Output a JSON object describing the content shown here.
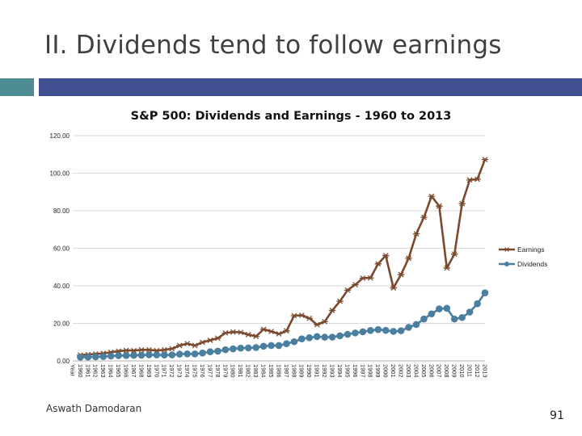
{
  "slide": {
    "title": "II. Dividends tend to follow earnings",
    "author": "Aswath Damodaran",
    "page_number": "91"
  },
  "colors": {
    "accent": "#4e8c93",
    "bar": "#3f4f8f",
    "earnings": "#7b4a2e",
    "dividends": "#4a7fa0",
    "grid": "#d9d9d9"
  },
  "chart_data": {
    "type": "line",
    "title": "S&P 500: Dividends and Earnings - 1960 to 2013",
    "xlabel": "",
    "ylabel": "",
    "ylim": [
      0,
      120
    ],
    "yticks": [
      "0.00",
      "20.00",
      "40.00",
      "60.00",
      "80.00",
      "100.00",
      "120.00"
    ],
    "categories": [
      "Year",
      "1960",
      "1961",
      "1962",
      "1963",
      "1964",
      "1965",
      "1966",
      "1967",
      "1968",
      "1969",
      "1970",
      "1971",
      "1972",
      "1973",
      "1974",
      "1975",
      "1976",
      "1977",
      "1978",
      "1979",
      "1980",
      "1981",
      "1982",
      "1983",
      "1984",
      "1985",
      "1986",
      "1987",
      "1988",
      "1989",
      "1990",
      "1991",
      "1992",
      "1993",
      "1994",
      "1995",
      "1996",
      "1997",
      "1998",
      "1999",
      "2000",
      "2001",
      "2002",
      "2003",
      "2004",
      "2005",
      "2006",
      "2007",
      "2008",
      "2009",
      "2010",
      "2011",
      "2012",
      "2013"
    ],
    "series": [
      {
        "name": "Earnings",
        "marker": "star",
        "values": [
          null,
          3.1,
          3.4,
          3.7,
          4.0,
          4.6,
          5.2,
          5.6,
          5.5,
          5.9,
          5.9,
          5.5,
          5.9,
          6.5,
          8.2,
          9.2,
          8.2,
          9.9,
          11.0,
          12.1,
          14.9,
          15.4,
          15.2,
          14.0,
          13.1,
          16.8,
          15.7,
          14.4,
          16.0,
          24.1,
          24.3,
          22.7,
          19.3,
          20.9,
          26.9,
          31.8,
          37.7,
          40.6,
          44.1,
          44.2,
          51.7,
          56.1,
          38.9,
          46.0,
          54.7,
          67.7,
          76.5,
          87.7,
          82.5,
          49.5,
          56.9,
          83.8,
          96.4,
          96.8,
          107.3
        ]
      },
      {
        "name": "Dividends",
        "marker": "circle",
        "values": [
          null,
          1.98,
          2.04,
          2.15,
          2.35,
          2.58,
          2.83,
          2.88,
          2.98,
          3.04,
          3.24,
          3.19,
          3.16,
          3.19,
          3.61,
          3.72,
          3.73,
          4.22,
          4.86,
          5.18,
          5.97,
          6.44,
          6.83,
          6.93,
          7.12,
          7.83,
          8.2,
          8.19,
          9.17,
          10.22,
          11.73,
          12.35,
          12.97,
          12.64,
          12.69,
          13.36,
          14.17,
          14.89,
          15.52,
          16.2,
          16.71,
          16.27,
          15.74,
          16.08,
          17.88,
          19.41,
          22.34,
          25.05,
          27.73,
          28.05,
          22.31,
          23.12,
          26.02,
          30.44,
          36.28
        ]
      }
    ],
    "legend": "right"
  }
}
